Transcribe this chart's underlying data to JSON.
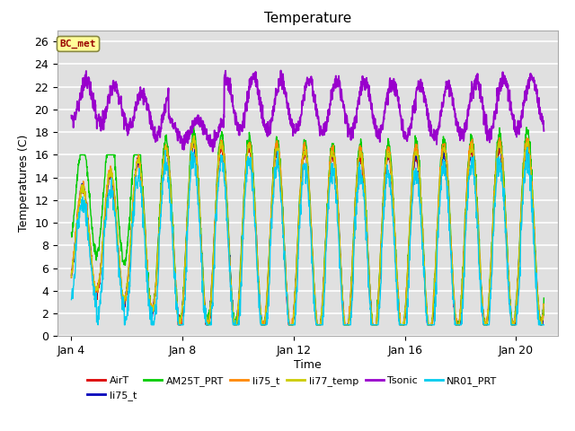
{
  "title": "Temperature",
  "xlabel": "Time",
  "ylabel": "Temperatures (C)",
  "ylim": [
    0,
    27
  ],
  "yticks": [
    0,
    2,
    4,
    6,
    8,
    10,
    12,
    14,
    16,
    18,
    20,
    22,
    24,
    26
  ],
  "xlim_days": [
    3.5,
    21.5
  ],
  "xtick_days": [
    4,
    8,
    12,
    16,
    20
  ],
  "xtick_labels": [
    "Jan 4",
    "Jan 8",
    "Jan 12",
    "Jan 16",
    "Jan 20"
  ],
  "fig_facecolor": "#ffffff",
  "axes_facecolor": "#e0e0e0",
  "grid_color": "#ffffff",
  "legend_entries": [
    {
      "label": "AirT",
      "color": "#dd0000"
    },
    {
      "label": "li75_t",
      "color": "#0000bb"
    },
    {
      "label": "AM25T_PRT",
      "color": "#00cc00"
    },
    {
      "label": "li75_t",
      "color": "#ff8800"
    },
    {
      "label": "li77_temp",
      "color": "#cccc00"
    },
    {
      "label": "Tsonic",
      "color": "#9900cc"
    },
    {
      "label": "NR01_PRT",
      "color": "#00ccee"
    }
  ],
  "annotation": {
    "text": "BC_met",
    "facecolor": "#ffff99",
    "edgecolor": "#888844",
    "textcolor": "#990000",
    "fontsize": 8,
    "fontweight": "bold"
  }
}
